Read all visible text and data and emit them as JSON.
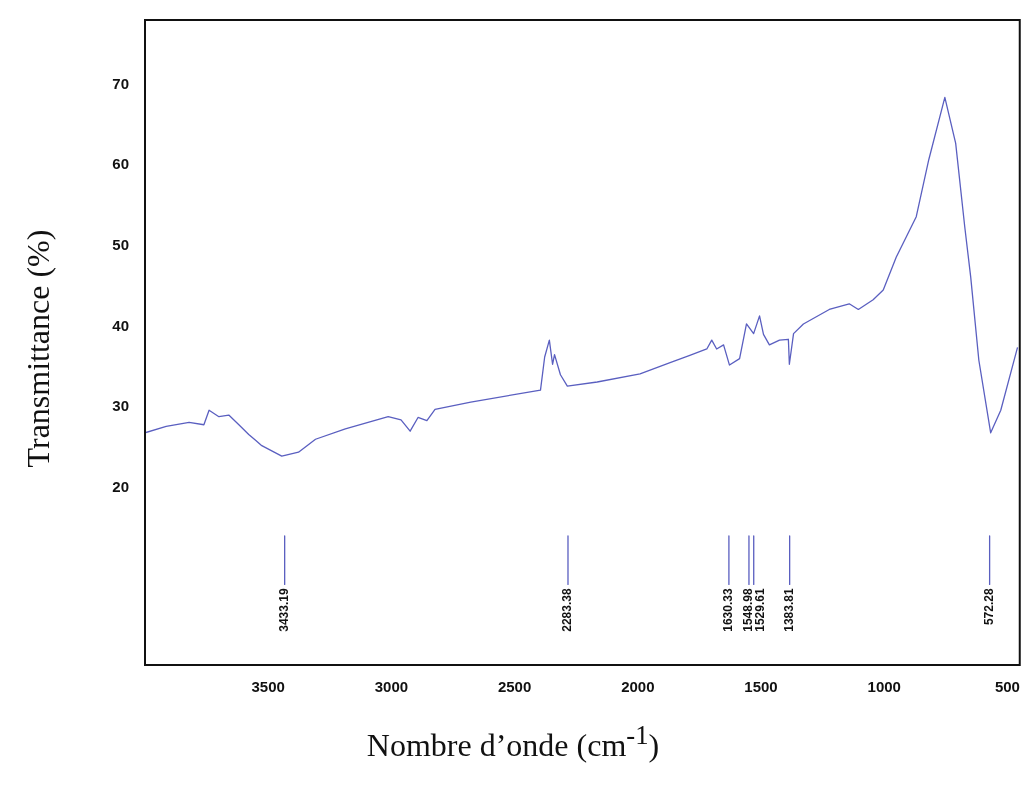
{
  "chart_data": {
    "type": "line",
    "xlabel": "Nombre d’onde (cm$^{-1}$)",
    "ylabel": "Transmittance (%)",
    "xlim": [
      4000,
      450
    ],
    "xticks": [
      3500,
      3000,
      2500,
      2000,
      1500,
      1000,
      500
    ],
    "ylim": [
      -2,
      78
    ],
    "yticks": [
      20,
      30,
      40,
      50,
      60,
      70
    ],
    "grid": false,
    "legend": false,
    "marker": "none",
    "line_style": "solid",
    "series": [
      {
        "color": "#5a5fc0",
        "x": [
          4000,
          3914,
          3821,
          3761,
          3740,
          3700,
          3660,
          3619,
          3579,
          3526,
          3445,
          3377,
          3308,
          3187,
          3013,
          2961,
          2924,
          2892,
          2856,
          2823,
          2678,
          2395,
          2378,
          2359,
          2346,
          2338,
          2314,
          2286,
          2165,
          1991,
          1869,
          1789,
          1720,
          1700,
          1680,
          1652,
          1628,
          1587,
          1559,
          1530,
          1506,
          1490,
          1466,
          1425,
          1389,
          1385,
          1368,
          1328,
          1223,
          1142,
          1105,
          1045,
          1004,
          951,
          870,
          819,
          754,
          710,
          673,
          649,
          616,
          568,
          527,
          459
        ],
        "values": [
          26.8,
          27.6,
          28.1,
          27.8,
          29.6,
          28.8,
          29.0,
          27.8,
          26.6,
          25.2,
          23.9,
          24.4,
          26.0,
          27.3,
          28.8,
          28.4,
          27.0,
          28.7,
          28.3,
          29.7,
          30.6,
          32.1,
          36.2,
          38.3,
          35.3,
          36.5,
          34.0,
          32.6,
          33.1,
          34.1,
          35.5,
          36.4,
          37.2,
          38.3,
          37.2,
          37.7,
          35.2,
          36.0,
          40.3,
          39.1,
          41.3,
          39.0,
          37.7,
          38.3,
          38.4,
          35.3,
          39.1,
          40.3,
          42.1,
          42.8,
          42.1,
          43.3,
          44.5,
          48.6,
          53.6,
          60.7,
          68.4,
          62.7,
          52.3,
          46.1,
          35.8,
          26.8,
          29.6,
          37.4
        ]
      },
      {
        "color": "#5a5fc0",
        "x": [
          3433.19,
          3433.19
        ],
        "values": [
          14,
          8
        ]
      },
      {
        "color": "#5a5fc0",
        "x": [
          2283.38,
          2283.38
        ],
        "values": [
          14,
          8
        ]
      },
      {
        "color": "#5a5fc0",
        "x": [
          1630.33,
          1630.33
        ],
        "values": [
          14,
          8
        ]
      },
      {
        "color": "#5a5fc0",
        "x": [
          1548.98,
          1548.98
        ],
        "values": [
          14,
          8
        ]
      },
      {
        "color": "#5a5fc0",
        "x": [
          1529.61,
          1529.61
        ],
        "values": [
          14,
          8
        ]
      },
      {
        "color": "#5a5fc0",
        "x": [
          1383.81,
          1383.81
        ],
        "values": [
          14,
          8
        ]
      },
      {
        "color": "#5a5fc0",
        "x": [
          572.28,
          572.28
        ],
        "values": [
          14,
          8
        ]
      }
    ],
    "annotations": [
      {
        "text": "3433.19",
        "x": 3433.19,
        "y": 8
      },
      {
        "text": "2283.38",
        "x": 2283.38,
        "y": 8
      },
      {
        "text": "1630.33",
        "x": 1630.33,
        "y": 8
      },
      {
        "text": "1548.98",
        "x": 1548.98,
        "y": 8
      },
      {
        "text": "1529.61",
        "x": 1529.61,
        "y": 8
      },
      {
        "text": "1383.81",
        "x": 1383.81,
        "y": 8
      },
      {
        "text": "572.28",
        "x": 572.28,
        "y": 8
      }
    ]
  }
}
